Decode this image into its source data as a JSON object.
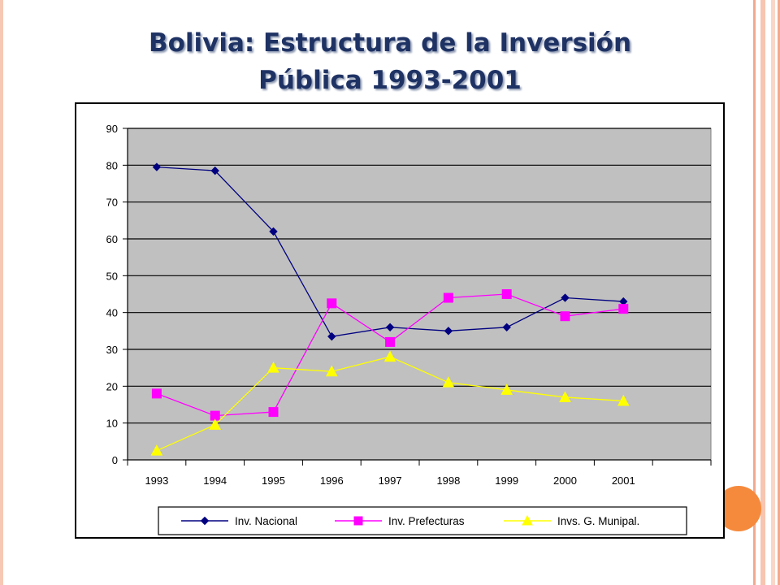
{
  "title": {
    "line1": "Bolivia: Estructura de la Inversión",
    "line2": "Pública 1993-2001"
  },
  "chart_data": {
    "type": "line",
    "x": [
      "1993",
      "1994",
      "1995",
      "1996",
      "1997",
      "1998",
      "1999",
      "2000",
      "2001"
    ],
    "series": [
      {
        "name": "Inv. Nacional",
        "color": "#000080",
        "marker": "diamond",
        "values": [
          79.5,
          78.5,
          62,
          33.5,
          36,
          35,
          36,
          44,
          43
        ]
      },
      {
        "name": "Inv. Prefecturas",
        "color": "#ff00ff",
        "marker": "square",
        "values": [
          18,
          12,
          13,
          42.5,
          32,
          44,
          45,
          39,
          41
        ]
      },
      {
        "name": "Invs. G. Munipal.",
        "color": "#ffff00",
        "marker": "triangle",
        "values": [
          2.5,
          9.5,
          25,
          24,
          28,
          21,
          19,
          17,
          16
        ]
      }
    ],
    "ylim": [
      0,
      90
    ],
    "yticks": [
      0,
      10,
      20,
      30,
      40,
      50,
      60,
      70,
      80,
      90
    ],
    "grid": true,
    "plot_background": "#c0c0c0",
    "legend": "bottom"
  }
}
